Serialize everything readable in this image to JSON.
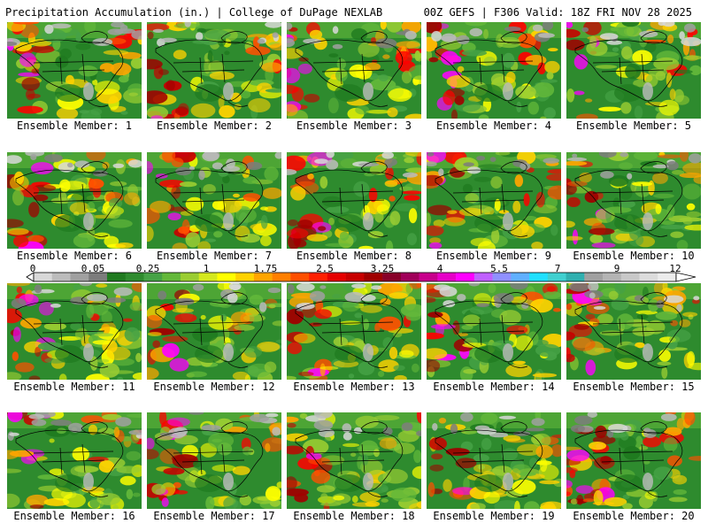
{
  "header": {
    "left_title": "Precipitation Accumulation (in.) | College of DuPage NEXLAB",
    "right_title": "00Z GEFS | F306 Valid: 18Z FRI NOV 28 2025"
  },
  "colorbar": {
    "tick_labels": [
      "0",
      "0.05",
      "0.25",
      "1",
      "1.75",
      "2.5",
      "3.25",
      "4",
      "5.5",
      "7",
      "9",
      "12"
    ],
    "colors": [
      "#d8d8d8",
      "#bcbcbc",
      "#a0a0a0",
      "#7c7c7c",
      "#1f7a1f",
      "#2e8b2e",
      "#46a246",
      "#63b83a",
      "#9acd32",
      "#d4e81e",
      "#ffff00",
      "#ffd200",
      "#ffa500",
      "#ff7f00",
      "#ff5000",
      "#ff2000",
      "#e60000",
      "#c80000",
      "#a00000",
      "#880028",
      "#a0005a",
      "#c8008c",
      "#e600c8",
      "#ff00ff",
      "#c060ff",
      "#9090ff",
      "#60b0ff",
      "#20e0ff",
      "#40d0d0",
      "#30b0b0",
      "#a0a0a0",
      "#b4b4b4",
      "#c8c8c8",
      "#dcdcdc",
      "#ececec"
    ]
  },
  "members": [
    "Ensemble Member: 1",
    "Ensemble Member: 2",
    "Ensemble Member: 3",
    "Ensemble Member: 4",
    "Ensemble Member: 5",
    "Ensemble Member: 6",
    "Ensemble Member: 7",
    "Ensemble Member: 8",
    "Ensemble Member: 9",
    "Ensemble Member: 10",
    "Ensemble Member: 11",
    "Ensemble Member: 12",
    "Ensemble Member: 13",
    "Ensemble Member: 14",
    "Ensemble Member: 15",
    "Ensemble Member: 16",
    "Ensemble Member: 17",
    "Ensemble Member: 18",
    "Ensemble Member: 19",
    "Ensemble Member: 20"
  ]
}
